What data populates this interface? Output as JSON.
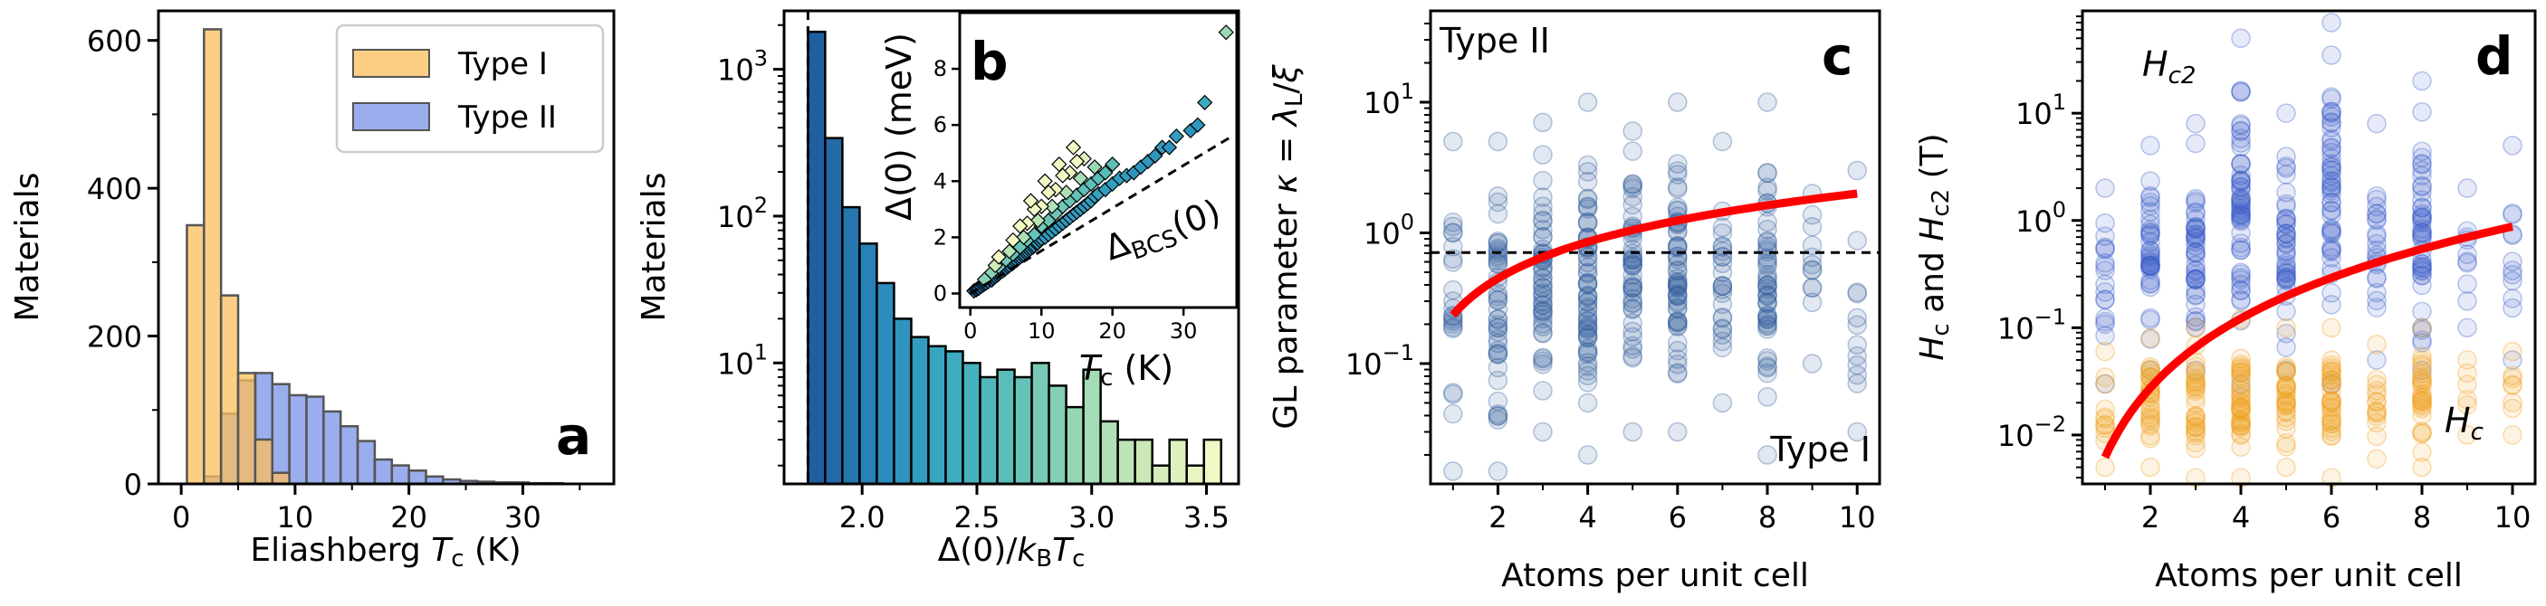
{
  "chart_data": [
    {
      "panel": "a",
      "type": "bar",
      "xlabel_main": "Eliashberg ",
      "xlabel_var": "T",
      "xlabel_sub": "c",
      "xlabel_unit": " (K)",
      "ylabel": "Materials",
      "xlim": [
        -2,
        38
      ],
      "ylim": [
        0,
        640
      ],
      "xticks": [
        0,
        10,
        20,
        30
      ],
      "yticks": [
        0,
        200,
        400,
        600
      ],
      "bin_width": 1.5,
      "legend_position": "top-right",
      "colors": {
        "type1": "#fcbf5c",
        "type2": "#7892e6",
        "edge": "#555555"
      },
      "series": [
        {
          "name": "Type I",
          "bin_starts": [
            0.5,
            2.0,
            3.5,
            5.0,
            6.5,
            8.0
          ],
          "values": [
            350,
            615,
            255,
            150,
            60,
            15
          ]
        },
        {
          "name": "Type II",
          "bin_starts": [
            2.0,
            3.5,
            5.0,
            6.5,
            8.0,
            9.5,
            11.0,
            12.5,
            14.0,
            15.5,
            17.0,
            18.5,
            20.0,
            21.5,
            23.0,
            24.5,
            26.0,
            27.5,
            29.0,
            30.5,
            32.0
          ],
          "values": [
            10,
            95,
            140,
            150,
            135,
            120,
            118,
            98,
            78,
            58,
            33,
            25,
            18,
            10,
            6,
            4,
            3,
            2,
            2,
            1,
            1
          ]
        }
      ],
      "panel_label": "a"
    },
    {
      "panel": "b",
      "type": "bar",
      "xlabel_pre": "Δ(0)/",
      "xlabel_k": "k",
      "xlabel_ksub": "B",
      "xlabel_t": "T",
      "xlabel_tsub": "c",
      "ylabel": "Materials",
      "xlim": [
        1.66,
        3.64
      ],
      "ylim_log": [
        1.5,
        2500
      ],
      "xticks": [
        2.0,
        2.5,
        3.0,
        3.5
      ],
      "xtick_labels": [
        "2.0",
        "2.5",
        "3.0",
        "3.5"
      ],
      "ytick_labels": [
        {
          "base": "10",
          "exp": "1",
          "value": 10
        },
        {
          "base": "10",
          "exp": "2",
          "value": 100
        },
        {
          "base": "10",
          "exp": "3",
          "value": 1000
        }
      ],
      "bcs_ratio": 1.764,
      "bin_width": 0.075,
      "bin_starts": [
        1.764,
        1.839,
        1.914,
        1.989,
        2.064,
        2.139,
        2.214,
        2.289,
        2.364,
        2.439,
        2.514,
        2.589,
        2.664,
        2.739,
        2.814,
        2.889,
        2.964,
        3.039,
        3.114,
        3.189,
        3.264,
        3.339,
        3.414,
        3.489
      ],
      "values": [
        1800,
        340,
        115,
        65,
        35,
        20,
        15,
        13,
        12,
        10,
        8,
        9,
        8,
        10,
        7,
        5,
        9,
        4,
        3,
        3,
        2,
        3,
        2,
        3
      ],
      "colormap": [
        "#1f5fa0",
        "#2a8bbd",
        "#3aaac0",
        "#5fc0b8",
        "#9ad9b4",
        "#cdeab8",
        "#f1f8c4"
      ],
      "panel_label": "b",
      "inset": {
        "type": "scatter",
        "xlim": [
          -1.5,
          37.5
        ],
        "ylim": [
          -0.5,
          10.0
        ],
        "xticks": [
          0,
          10,
          20,
          30
        ],
        "yticks": [
          0,
          2,
          4,
          6,
          8
        ],
        "xlabel_var": "T",
        "xlabel_sub": "c",
        "xlabel_unit": " (K)",
        "ylabel": "Δ(0) (meV)",
        "bcs_label_main": "Δ",
        "bcs_label_sub": "BCS",
        "bcs_label_tail": "(0)",
        "bcs_slope_mev_per_k": 0.152,
        "points": [
          [
            0.5,
            0.09
          ],
          [
            0.8,
            0.13
          ],
          [
            1.0,
            0.17
          ],
          [
            1.2,
            0.19
          ],
          [
            1.5,
            0.25
          ],
          [
            1.8,
            0.3
          ],
          [
            2.0,
            0.34
          ],
          [
            2.2,
            0.37
          ],
          [
            2.5,
            0.42
          ],
          [
            2.8,
            0.5
          ],
          [
            3.0,
            0.48
          ],
          [
            3.2,
            0.55
          ],
          [
            3.5,
            0.6
          ],
          [
            3.8,
            0.65
          ],
          [
            4.0,
            0.7
          ],
          [
            4.2,
            0.76
          ],
          [
            4.5,
            0.8
          ],
          [
            4.8,
            0.85
          ],
          [
            5.0,
            0.9
          ],
          [
            5.3,
            0.95
          ],
          [
            5.5,
            1.0
          ],
          [
            5.8,
            1.05
          ],
          [
            6.0,
            1.08
          ],
          [
            6.2,
            1.15
          ],
          [
            6.5,
            1.18
          ],
          [
            6.8,
            1.25
          ],
          [
            7.0,
            1.3
          ],
          [
            7.3,
            1.35
          ],
          [
            7.5,
            1.4
          ],
          [
            7.8,
            1.45
          ],
          [
            8.0,
            1.5
          ],
          [
            8.3,
            1.55
          ],
          [
            8.5,
            1.6
          ],
          [
            8.8,
            1.65
          ],
          [
            9.0,
            1.7
          ],
          [
            9.3,
            1.78
          ],
          [
            9.5,
            1.8
          ],
          [
            9.8,
            1.88
          ],
          [
            10.0,
            1.95
          ],
          [
            10.5,
            2.0
          ],
          [
            11.0,
            2.1
          ],
          [
            11.5,
            2.2
          ],
          [
            12.0,
            2.3
          ],
          [
            12.5,
            2.4
          ],
          [
            13.0,
            2.5
          ],
          [
            13.5,
            2.6
          ],
          [
            14.0,
            2.7
          ],
          [
            14.5,
            2.8
          ],
          [
            15.0,
            2.9
          ],
          [
            15.5,
            3.0
          ],
          [
            16.0,
            3.1
          ],
          [
            16.5,
            3.2
          ],
          [
            17.0,
            3.3
          ],
          [
            17.5,
            3.45
          ],
          [
            18.0,
            3.55
          ],
          [
            19.0,
            3.7
          ],
          [
            20.0,
            3.9
          ],
          [
            21.0,
            4.1
          ],
          [
            22.0,
            4.2
          ],
          [
            23.0,
            4.3
          ],
          [
            2.0,
            0.5
          ],
          [
            3.0,
            0.75
          ],
          [
            4.0,
            0.95
          ],
          [
            5.0,
            1.2
          ],
          [
            6.0,
            1.4
          ],
          [
            7.0,
            1.65
          ],
          [
            8.0,
            1.9
          ],
          [
            9.0,
            2.1
          ],
          [
            10.0,
            2.4
          ],
          [
            11.0,
            2.6
          ],
          [
            12.0,
            2.85
          ],
          [
            13.0,
            3.1
          ],
          [
            14.0,
            3.3
          ],
          [
            15.0,
            3.5
          ],
          [
            16.0,
            3.7
          ],
          [
            17.0,
            3.9
          ],
          [
            18.0,
            4.1
          ],
          [
            19.0,
            4.3
          ],
          [
            20.0,
            4.6
          ],
          [
            3.5,
            1.0
          ],
          [
            5.5,
            1.5
          ],
          [
            7.5,
            2.0
          ],
          [
            9.5,
            2.6
          ],
          [
            11.5,
            3.1
          ],
          [
            13.5,
            3.6
          ],
          [
            15.5,
            4.1
          ],
          [
            17.5,
            4.5
          ],
          [
            4.0,
            1.3
          ],
          [
            6.0,
            1.9
          ],
          [
            8.0,
            2.5
          ],
          [
            10.0,
            3.1
          ],
          [
            12.0,
            3.7
          ],
          [
            14.0,
            4.3
          ],
          [
            16.0,
            4.8
          ],
          [
            7.0,
            2.4
          ],
          [
            9.0,
            3.0
          ],
          [
            11.0,
            3.6
          ],
          [
            13.0,
            4.2
          ],
          [
            15.0,
            4.7
          ],
          [
            8.5,
            3.3
          ],
          [
            10.5,
            4.0
          ],
          [
            12.5,
            4.6
          ],
          [
            14.5,
            5.2
          ],
          [
            24.0,
            4.5
          ],
          [
            25.0,
            4.7
          ],
          [
            26.0,
            4.9
          ],
          [
            27.0,
            5.2
          ],
          [
            28.0,
            5.2
          ],
          [
            29.0,
            5.6
          ],
          [
            31.0,
            5.8
          ],
          [
            32.0,
            6.0
          ],
          [
            33.0,
            6.8
          ],
          [
            36.0,
            9.3
          ]
        ]
      }
    },
    {
      "panel": "c",
      "type": "scatter",
      "xlabel": "Atoms per unit cell",
      "ylabel_pre": "GL parameter ",
      "ylabel_kappa": "κ",
      "ylabel_eq": " = ",
      "ylabel_lambda": "λ",
      "ylabel_lsub": "L",
      "ylabel_tail": "/",
      "ylabel_xi": "ξ",
      "xlim": [
        0.5,
        10.5
      ],
      "ylim_log": [
        0.012,
        50
      ],
      "xticks": [
        2,
        4,
        6,
        8,
        10
      ],
      "ytick_labels": [
        {
          "base": "10",
          "exp": "−1",
          "value": 0.1
        },
        {
          "base": "10",
          "exp": "0",
          "value": 1
        },
        {
          "base": "10",
          "exp": "1",
          "value": 10
        }
      ],
      "threshold": 0.707,
      "columns": [
        {
          "x": 1,
          "min": 0.015,
          "max": 5.0,
          "n": 22
        },
        {
          "x": 2,
          "min": 0.015,
          "max": 5.0,
          "n": 42
        },
        {
          "x": 3,
          "min": 0.03,
          "max": 7.0,
          "n": 48
        },
        {
          "x": 4,
          "min": 0.02,
          "max": 10.0,
          "n": 60
        },
        {
          "x": 5,
          "min": 0.03,
          "max": 6.0,
          "n": 45
        },
        {
          "x": 6,
          "min": 0.03,
          "max": 10.0,
          "n": 55
        },
        {
          "x": 7,
          "min": 0.05,
          "max": 5.0,
          "n": 25
        },
        {
          "x": 8,
          "min": 0.02,
          "max": 10.0,
          "n": 48
        },
        {
          "x": 9,
          "min": 0.1,
          "max": 2.0,
          "n": 12
        },
        {
          "x": 10,
          "min": 0.03,
          "max": 3.0,
          "n": 12
        }
      ],
      "trend": {
        "coef": 0.235,
        "exponent": 0.93
      },
      "colors": {
        "points": "#2f5b9c",
        "trend": "#ff0000"
      },
      "label_top": "Type II",
      "label_bottom": "Type I",
      "panel_label": "c"
    },
    {
      "panel": "d",
      "type": "scatter",
      "xlabel": "Atoms per unit cell",
      "ylabel_h": "H",
      "ylabel_hsub": "c",
      "ylabel_and": " and ",
      "ylabel_h2sub": "c2",
      "ylabel_unit": " (T)",
      "xlim": [
        0.5,
        10.5
      ],
      "ylim_log": [
        0.0035,
        90
      ],
      "xticks": [
        2,
        4,
        6,
        8,
        10
      ],
      "ytick_labels": [
        {
          "base": "10",
          "exp": "−2",
          "value": 0.01
        },
        {
          "base": "10",
          "exp": "−1",
          "value": 0.1
        },
        {
          "base": "10",
          "exp": "0",
          "value": 1
        },
        {
          "base": "10",
          "exp": "1",
          "value": 10
        }
      ],
      "hc2_columns": [
        {
          "x": 1,
          "min": 0.03,
          "max": 2.0,
          "n": 18
        },
        {
          "x": 2,
          "min": 0.04,
          "max": 5.0,
          "n": 38
        },
        {
          "x": 3,
          "min": 0.04,
          "max": 8.0,
          "n": 42
        },
        {
          "x": 4,
          "min": 0.03,
          "max": 50.0,
          "n": 55
        },
        {
          "x": 5,
          "min": 0.04,
          "max": 10.0,
          "n": 40
        },
        {
          "x": 6,
          "min": 0.03,
          "max": 70.0,
          "n": 50
        },
        {
          "x": 7,
          "min": 0.05,
          "max": 8.0,
          "n": 22
        },
        {
          "x": 8,
          "min": 0.04,
          "max": 20.0,
          "n": 45
        },
        {
          "x": 9,
          "min": 0.1,
          "max": 2.0,
          "n": 10
        },
        {
          "x": 10,
          "min": 0.05,
          "max": 5.0,
          "n": 12
        }
      ],
      "hc_columns": [
        {
          "x": 1,
          "min": 0.005,
          "max": 0.06,
          "n": 12
        },
        {
          "x": 2,
          "min": 0.005,
          "max": 0.08,
          "n": 28
        },
        {
          "x": 3,
          "min": 0.004,
          "max": 0.1,
          "n": 30
        },
        {
          "x": 4,
          "min": 0.004,
          "max": 0.12,
          "n": 38
        },
        {
          "x": 5,
          "min": 0.005,
          "max": 0.1,
          "n": 28
        },
        {
          "x": 6,
          "min": 0.004,
          "max": 0.1,
          "n": 32
        },
        {
          "x": 7,
          "min": 0.006,
          "max": 0.07,
          "n": 14
        },
        {
          "x": 8,
          "min": 0.005,
          "max": 0.1,
          "n": 28
        },
        {
          "x": 9,
          "min": 0.01,
          "max": 0.05,
          "n": 6
        },
        {
          "x": 10,
          "min": 0.01,
          "max": 0.06,
          "n": 8
        }
      ],
      "trend": {
        "coef": 0.0062,
        "exponent": 2.15
      },
      "colors": {
        "hc2": "#3a5fc8",
        "hc": "#f0a020",
        "trend": "#ff0000"
      },
      "label_hc2_main": "H",
      "label_hc2_sub": "c2",
      "label_hc_main": "H",
      "label_hc_sub": "c",
      "panel_label": "d"
    }
  ]
}
